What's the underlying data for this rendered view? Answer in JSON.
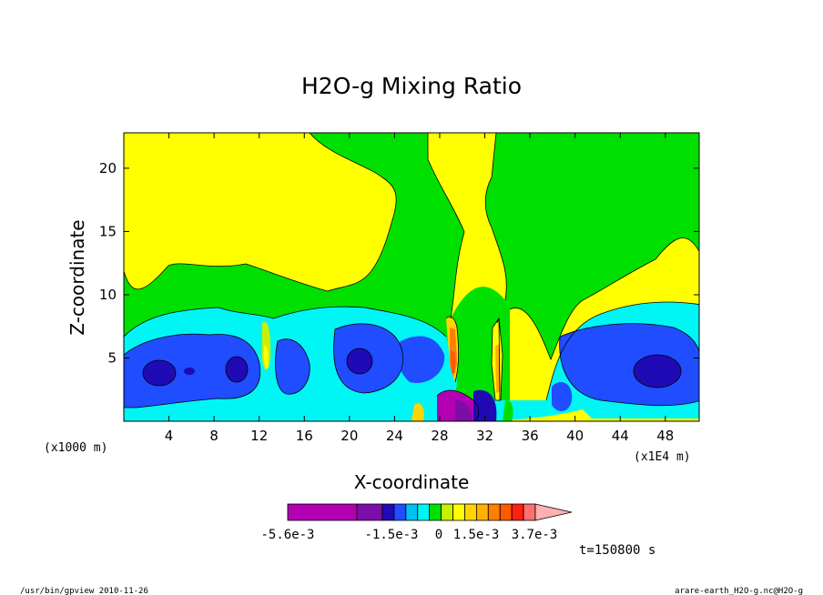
{
  "chart_data": {
    "type": "heatmap",
    "title": "H2O-g Mixing Ratio",
    "xlabel": "X-coordinate",
    "ylabel": "Z-coordinate",
    "x_unit_left": "(x1000 m)",
    "x_unit_right": "(x1E4 m)",
    "xlim": [
      0,
      51
    ],
    "ylim": [
      0,
      22.8
    ],
    "x_ticks": [
      4,
      8,
      12,
      16,
      20,
      24,
      28,
      32,
      36,
      40,
      44,
      48
    ],
    "x_tick_labels": [
      "4",
      "8",
      "12",
      "16",
      "20",
      "24",
      "28",
      "32",
      "36",
      "40",
      "44",
      "48"
    ],
    "y_ticks": [
      5,
      10,
      15,
      20
    ],
    "y_tick_labels": [
      "5",
      "10",
      "15",
      "20"
    ],
    "colorbar": {
      "colors": [
        "#b200b2",
        "#7d0da8",
        "#1f0ab5",
        "#1f4dff",
        "#00c0f0",
        "#00f5f5",
        "#00e000",
        "#c8f000",
        "#ffff00",
        "#ffd500",
        "#ffb000",
        "#ff8000",
        "#ff5a00",
        "#ff2010",
        "#ff7070",
        "#ffb0b0"
      ],
      "labels": [
        "-5.6e-3",
        "-1.5e-3",
        "0",
        "1.5e-3",
        "3.7e-3"
      ]
    },
    "time_label": "t=150800 s"
  },
  "footer": {
    "left": "/usr/bin/gpview  2010-11-26",
    "right": "arare-earth_H2O-g.nc@H2O-g"
  }
}
